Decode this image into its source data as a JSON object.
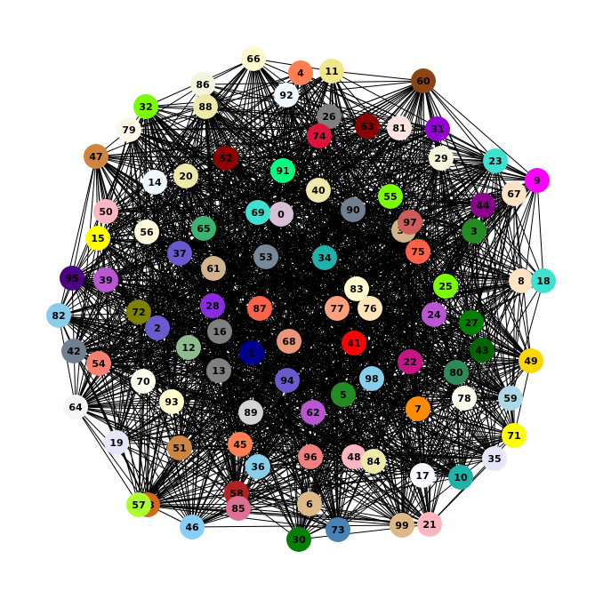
{
  "diagram": {
    "type": "network-graph",
    "node_count": 100,
    "edge_density": 0.35,
    "edge_color": "#000000",
    "label_color": "#000000",
    "nodes": [
      {
        "id": "0",
        "color": "#d8bfd8"
      },
      {
        "id": "1",
        "color": "#00008b"
      },
      {
        "id": "2",
        "color": "#6a5acd"
      },
      {
        "id": "3",
        "color": "#228b22"
      },
      {
        "id": "4",
        "color": "#ff7f50"
      },
      {
        "id": "5",
        "color": "#228b22"
      },
      {
        "id": "6",
        "color": "#deb887"
      },
      {
        "id": "7",
        "color": "#ff8c00"
      },
      {
        "id": "8",
        "color": "#ffe4c4"
      },
      {
        "id": "9",
        "color": "#ff00ff"
      },
      {
        "id": "10",
        "color": "#20b2aa"
      },
      {
        "id": "11",
        "color": "#f0e68c"
      },
      {
        "id": "12",
        "color": "#8fbc8f"
      },
      {
        "id": "13",
        "color": "#808080"
      },
      {
        "id": "14",
        "color": "#f0f8ff"
      },
      {
        "id": "15",
        "color": "#ffff00"
      },
      {
        "id": "16",
        "color": "#808080"
      },
      {
        "id": "17",
        "color": "#f8f8ff"
      },
      {
        "id": "18",
        "color": "#40e0d0"
      },
      {
        "id": "19",
        "color": "#e6e6fa"
      },
      {
        "id": "20",
        "color": "#eee8aa"
      },
      {
        "id": "21",
        "color": "#ffb6c1"
      },
      {
        "id": "22",
        "color": "#c71585"
      },
      {
        "id": "23",
        "color": "#40e0d0"
      },
      {
        "id": "24",
        "color": "#ba55d3"
      },
      {
        "id": "25",
        "color": "#7cfc00"
      },
      {
        "id": "26",
        "color": "#808080"
      },
      {
        "id": "27",
        "color": "#008000"
      },
      {
        "id": "28",
        "color": "#8a2be2"
      },
      {
        "id": "29",
        "color": "#f5f5dc"
      },
      {
        "id": "30",
        "color": "#008000"
      },
      {
        "id": "31",
        "color": "#9400d3"
      },
      {
        "id": "32",
        "color": "#7cfc00"
      },
      {
        "id": "33",
        "color": "#d2b48c"
      },
      {
        "id": "34",
        "color": "#20b2aa"
      },
      {
        "id": "35",
        "color": "#e6e6fa"
      },
      {
        "id": "36",
        "color": "#87ceeb"
      },
      {
        "id": "37",
        "color": "#6a5acd"
      },
      {
        "id": "38",
        "color": "#d2691e"
      },
      {
        "id": "39",
        "color": "#ba55d3"
      },
      {
        "id": "40",
        "color": "#eee8aa"
      },
      {
        "id": "41",
        "color": "#ff0000"
      },
      {
        "id": "42",
        "color": "#708090"
      },
      {
        "id": "43",
        "color": "#006400"
      },
      {
        "id": "44",
        "color": "#8b008b"
      },
      {
        "id": "45",
        "color": "#ff7f50"
      },
      {
        "id": "46",
        "color": "#87cefa"
      },
      {
        "id": "47",
        "color": "#cd853f"
      },
      {
        "id": "48",
        "color": "#ffb6c1"
      },
      {
        "id": "49",
        "color": "#ffd700"
      },
      {
        "id": "50",
        "color": "#ffb6c1"
      },
      {
        "id": "51",
        "color": "#cd853f"
      },
      {
        "id": "52",
        "color": "#8b0000"
      },
      {
        "id": "53",
        "color": "#778899"
      },
      {
        "id": "54",
        "color": "#fa8072"
      },
      {
        "id": "55",
        "color": "#7cfc00"
      },
      {
        "id": "56",
        "color": "#fff8dc"
      },
      {
        "id": "57",
        "color": "#adff2f"
      },
      {
        "id": "58",
        "color": "#b22222"
      },
      {
        "id": "59",
        "color": "#add8e6"
      },
      {
        "id": "60",
        "color": "#8b4513"
      },
      {
        "id": "61",
        "color": "#d2b48c"
      },
      {
        "id": "62",
        "color": "#ba55d3"
      },
      {
        "id": "63",
        "color": "#8b0000"
      },
      {
        "id": "64",
        "color": "#f5f5f5"
      },
      {
        "id": "65",
        "color": "#3cb371"
      },
      {
        "id": "66",
        "color": "#fffacd"
      },
      {
        "id": "67",
        "color": "#ffe4c4"
      },
      {
        "id": "68",
        "color": "#e9967a"
      },
      {
        "id": "69",
        "color": "#40e0d0"
      },
      {
        "id": "70",
        "color": "#fffff0"
      },
      {
        "id": "71",
        "color": "#ffff00"
      },
      {
        "id": "72",
        "color": "#808000"
      },
      {
        "id": "73",
        "color": "#4682b4"
      },
      {
        "id": "74",
        "color": "#dc143c"
      },
      {
        "id": "75",
        "color": "#ff6347"
      },
      {
        "id": "76",
        "color": "#ffe4b5"
      },
      {
        "id": "77",
        "color": "#ffa07a"
      },
      {
        "id": "78",
        "color": "#fffff0"
      },
      {
        "id": "79",
        "color": "#fdf5e6"
      },
      {
        "id": "80",
        "color": "#2e8b57"
      },
      {
        "id": "81",
        "color": "#ffe4e1"
      },
      {
        "id": "82",
        "color": "#87ceeb"
      },
      {
        "id": "83",
        "color": "#fffacd"
      },
      {
        "id": "84",
        "color": "#eee8aa"
      },
      {
        "id": "85",
        "color": "#db7093"
      },
      {
        "id": "86",
        "color": "#f5f5dc"
      },
      {
        "id": "87",
        "color": "#ff6347"
      },
      {
        "id": "88",
        "color": "#eee8aa"
      },
      {
        "id": "89",
        "color": "#d3d3d3"
      },
      {
        "id": "90",
        "color": "#708090"
      },
      {
        "id": "91",
        "color": "#00ff7f"
      },
      {
        "id": "92",
        "color": "#f0f8ff"
      },
      {
        "id": "93",
        "color": "#fffacd"
      },
      {
        "id": "94",
        "color": "#6a5acd"
      },
      {
        "id": "95",
        "color": "#4b0082"
      },
      {
        "id": "96",
        "color": "#f08080"
      },
      {
        "id": "97",
        "color": "#cd5c5c"
      },
      {
        "id": "98",
        "color": "#87ceeb"
      },
      {
        "id": "99",
        "color": "#deb887"
      }
    ]
  }
}
